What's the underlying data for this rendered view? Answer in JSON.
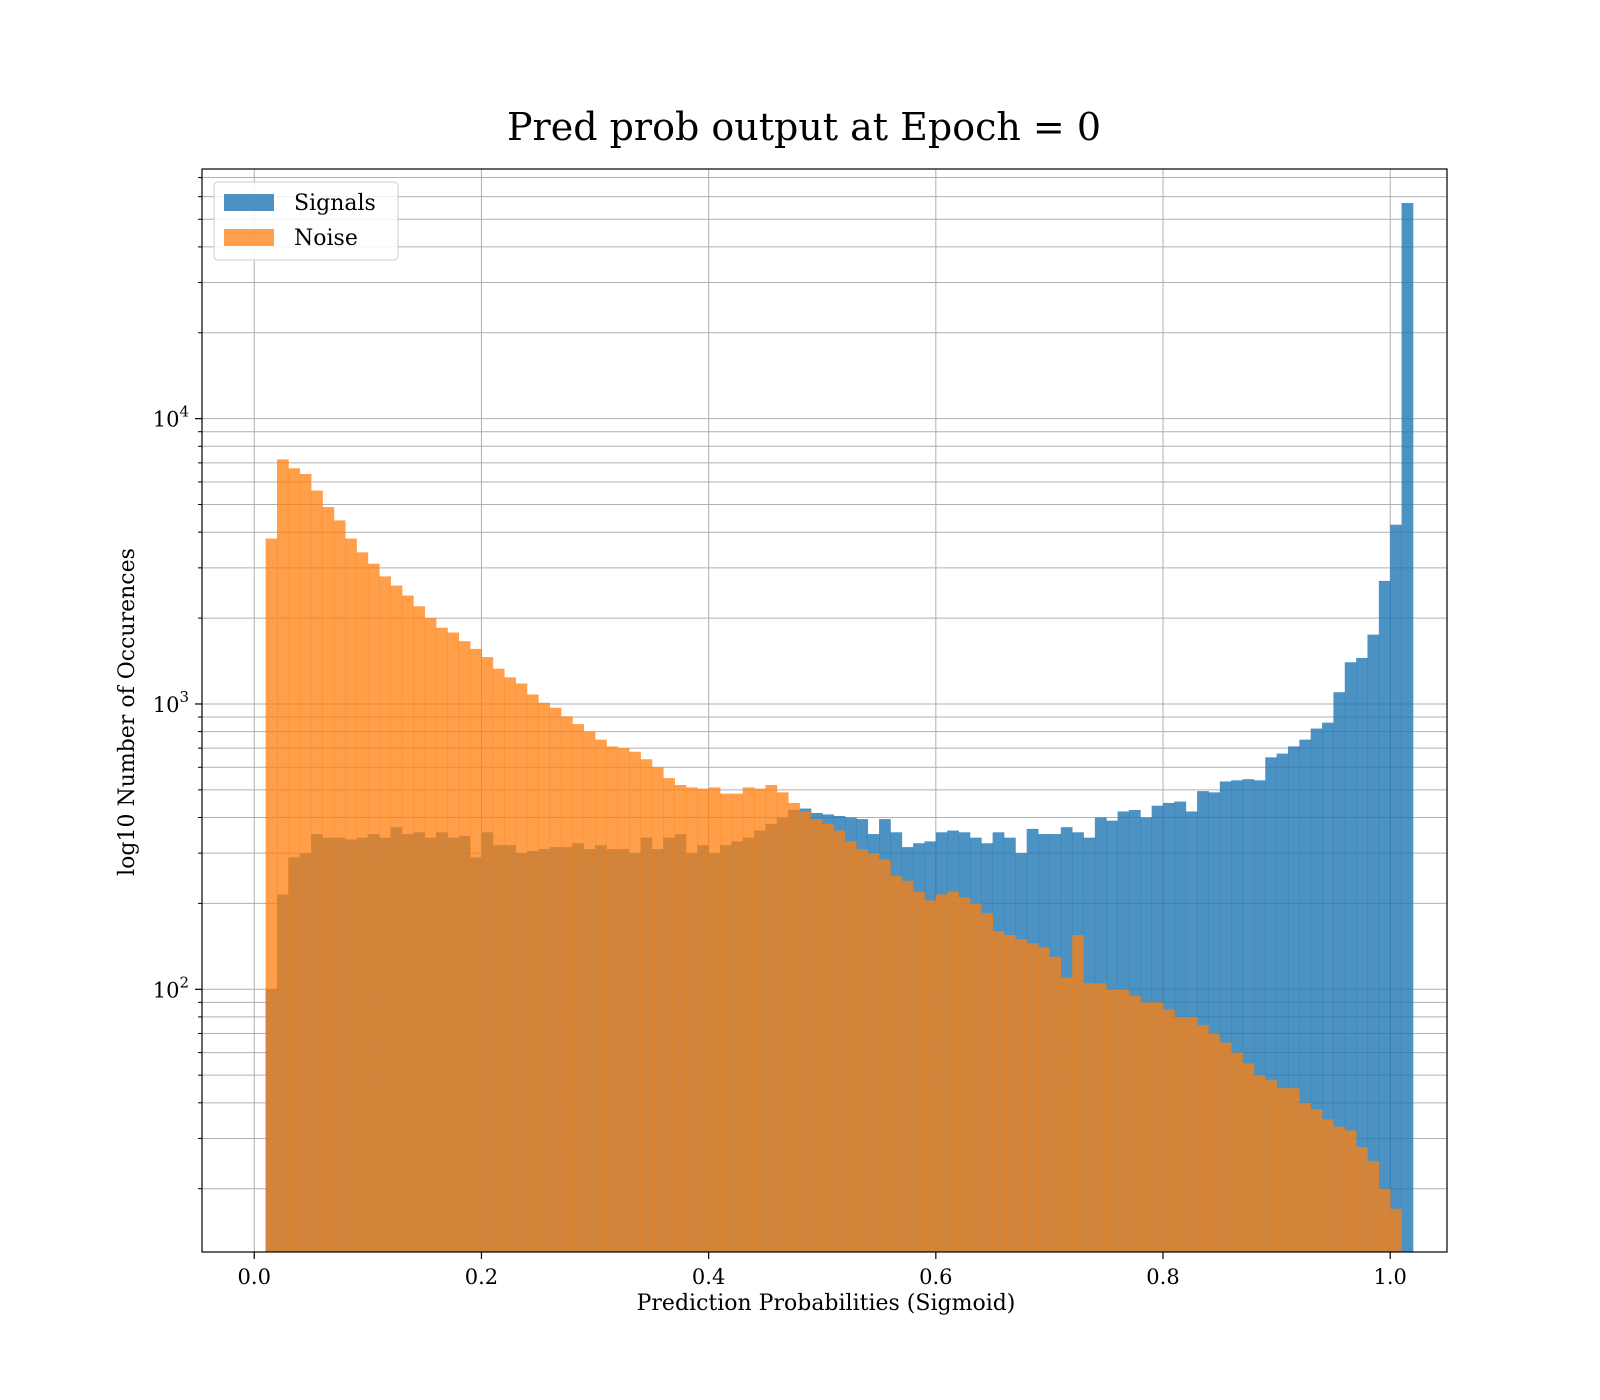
{
  "chart_data": {
    "type": "histogram",
    "title": "Pred prob output at Epoch = 0",
    "xlabel": "Prediction Probabilities (Sigmoid)",
    "ylabel": "log10 Number of Occurences",
    "yscale": "log",
    "xlim": [
      -0.046,
      1.05
    ],
    "ylim": [
      12,
      75000
    ],
    "xticks": [
      0.0,
      0.2,
      0.4,
      0.6,
      0.8,
      1.0
    ],
    "xtick_labels": [
      "0.0",
      "0.2",
      "0.4",
      "0.6",
      "0.8",
      "1.0"
    ],
    "yticks": [
      {
        "value": 100,
        "base": "10",
        "exp": "2"
      },
      {
        "value": 1000,
        "base": "10",
        "exp": "3"
      },
      {
        "value": 10000,
        "base": "10",
        "exp": "4"
      }
    ],
    "grid": true,
    "legend_position": "upper-left",
    "bin_start": 0.0,
    "bin_width": 0.01,
    "series": [
      {
        "name": "Signals",
        "color": "#1f77b4",
        "alpha": 0.8,
        "values": [
          0,
          100,
          215,
          290,
          300,
          350,
          340,
          340,
          335,
          340,
          350,
          340,
          370,
          350,
          355,
          340,
          355,
          340,
          345,
          290,
          355,
          320,
          320,
          300,
          305,
          310,
          315,
          315,
          325,
          310,
          320,
          310,
          310,
          300,
          340,
          310,
          340,
          350,
          300,
          320,
          300,
          320,
          330,
          340,
          360,
          380,
          400,
          425,
          430,
          415,
          410,
          405,
          400,
          395,
          350,
          395,
          355,
          315,
          325,
          330,
          355,
          360,
          355,
          340,
          325,
          355,
          340,
          300,
          365,
          350,
          350,
          370,
          355,
          340,
          400,
          390,
          420,
          425,
          400,
          440,
          450,
          455,
          420,
          495,
          490,
          535,
          540,
          545,
          540,
          650,
          670,
          710,
          750,
          820,
          860,
          1100,
          1400,
          1450,
          1750,
          2700,
          4250,
          57000
        ]
      },
      {
        "name": "Noise",
        "color": "#ff7f0e",
        "alpha": 0.75,
        "values": [
          12,
          3800,
          7200,
          6700,
          6400,
          5600,
          4900,
          4400,
          3800,
          3400,
          3100,
          2800,
          2600,
          2400,
          2200,
          2000,
          1850,
          1780,
          1660,
          1560,
          1460,
          1330,
          1240,
          1180,
          1080,
          1010,
          970,
          905,
          850,
          800,
          750,
          710,
          700,
          680,
          640,
          600,
          550,
          520,
          510,
          505,
          510,
          485,
          485,
          510,
          505,
          520,
          490,
          450,
          420,
          395,
          380,
          360,
          330,
          310,
          300,
          285,
          250,
          240,
          220,
          205,
          215,
          220,
          210,
          200,
          185,
          160,
          155,
          150,
          145,
          140,
          130,
          110,
          155,
          105,
          105,
          100,
          100,
          95,
          90,
          90,
          85,
          80,
          80,
          75,
          70,
          65,
          60,
          55,
          50,
          48,
          45,
          45,
          40,
          38,
          35,
          33,
          32,
          28,
          25,
          20,
          17,
          12
        ]
      }
    ]
  }
}
